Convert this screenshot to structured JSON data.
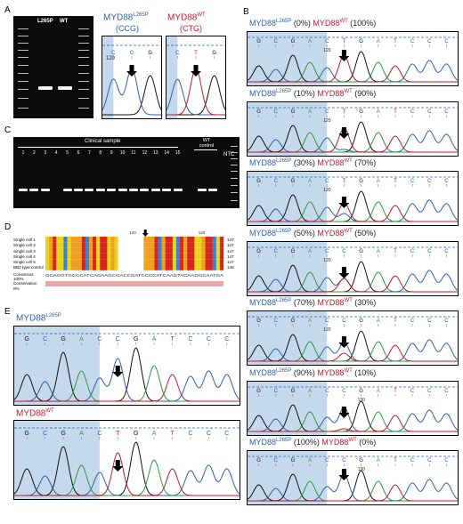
{
  "panels": {
    "A": "A",
    "B": "B",
    "C": "C",
    "D": "D",
    "E": "E"
  },
  "panel_a": {
    "lane_labels": [
      "L265P",
      "WT"
    ],
    "trace1": {
      "gene": "MYD88",
      "sup": "L265P",
      "codon": "(CCG)"
    },
    "trace2": {
      "gene": "MYD88",
      "sup": "WT",
      "codon": "(CTG)"
    },
    "pos": "120"
  },
  "panel_b": {
    "traces": [
      {
        "mut_pct": "(0%)",
        "wt_pct": "(100%)",
        "pos": "120"
      },
      {
        "mut_pct": "(10%)",
        "wt_pct": "(90%)",
        "pos": "120"
      },
      {
        "mut_pct": "(30%)",
        "wt_pct": "(70%)",
        "pos": "120"
      },
      {
        "mut_pct": "(50%)",
        "wt_pct": "(50%)",
        "pos": "120"
      },
      {
        "mut_pct": "(70%)",
        "wt_pct": "(30%)",
        "pos": "120"
      },
      {
        "mut_pct": "(90%)",
        "wt_pct": "(10%)",
        "pos": "130"
      },
      {
        "mut_pct": "(100%)",
        "wt_pct": "(0%)",
        "pos": "130"
      }
    ],
    "mut_name": "MYD88",
    "mut_sup": "L265P",
    "wt_name": "MYD88",
    "wt_sup": "WT",
    "seq": [
      "G",
      "C",
      "G",
      "A",
      "C",
      "T",
      "G",
      "A",
      "T",
      "C",
      "C",
      "C"
    ]
  },
  "panel_c": {
    "title": "Clinical sample",
    "lanes": [
      "1",
      "2",
      "3",
      "4",
      "5",
      "6",
      "7",
      "8",
      "9",
      "10",
      "11",
      "12",
      "13",
      "14",
      "15"
    ],
    "wt_label": "WT control",
    "ntc_label": "NTC"
  },
  "panel_d": {
    "rows": [
      "Single cell 1",
      "Single cell 2",
      "Single cell 3",
      "Single cell 4",
      "Single cell 5",
      "BB2 type control"
    ],
    "ends": [
      "147",
      "147",
      "147",
      "147",
      "147",
      "148"
    ],
    "consensus_label": "Consensus",
    "identity_label": "100%",
    "conservation_label": "Conservation",
    "conservation_pct": "0%",
    "consensus": "GCAGGTGCCCATCAGAAGCGACCGATCCCCATCAAGTACAAGGCAATGA",
    "marks": [
      "120",
      "140"
    ]
  },
  "panel_e": {
    "trace1": {
      "gene": "MYD88",
      "sup": "L265P"
    },
    "trace2": {
      "gene": "MYD88",
      "sup": "WT"
    },
    "seq1": [
      "G",
      "C",
      "G",
      "A",
      "C",
      "C",
      "G",
      "A",
      "T",
      "C",
      "C",
      "C"
    ],
    "seq2": [
      "G",
      "C",
      "G",
      "A",
      "C",
      "T",
      "G",
      "A",
      "T",
      "C",
      "C",
      "C"
    ],
    "pos": "120"
  },
  "colors": {
    "blue": "#3060a8",
    "red": "#c01a2e",
    "highlight": "#b7cfe8",
    "green": "#2e9b3a",
    "black": "#111111"
  }
}
